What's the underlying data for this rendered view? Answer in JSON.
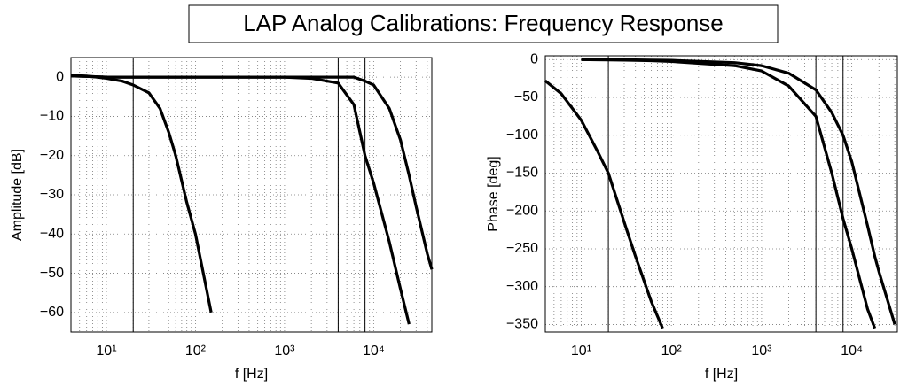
{
  "title": "LAP Analog Calibrations: Frequency Response",
  "chart_data": [
    {
      "type": "line",
      "xscale": "log",
      "grid": true,
      "xlabel": "f [Hz]",
      "ylabel": "Amplitude [dB]",
      "xlim": [
        4,
        45000
      ],
      "ylim": [
        -65,
        5
      ],
      "xticks": [
        {
          "value": 10,
          "label": "10¹"
        },
        {
          "value": 100,
          "label": "10²"
        },
        {
          "value": 1000,
          "label": "10³"
        },
        {
          "value": 10000,
          "label": "10⁴"
        }
      ],
      "yticks": [
        0,
        {
          "value": -10,
          "label": "−10"
        },
        {
          "value": -20,
          "label": "−20"
        },
        {
          "value": -30,
          "label": "−30"
        },
        {
          "value": -40,
          "label": "−40"
        },
        {
          "value": -50,
          "label": "−50"
        },
        {
          "value": -60,
          "label": "−60"
        }
      ],
      "vlines": [
        20,
        4000,
        8000
      ],
      "x": [
        4,
        6,
        10,
        15,
        20,
        30,
        40,
        50,
        60,
        80,
        100,
        120,
        150,
        1000,
        2000,
        4000,
        6000,
        8000,
        10000,
        15000,
        20000,
        25000,
        30000,
        40000,
        45000
      ],
      "series": [
        {
          "color": "#000000",
          "values": [
            0.5,
            0.3,
            -0.3,
            -1,
            -2,
            -4,
            -8,
            -14,
            -20,
            -32,
            -40,
            -49,
            -60,
            null,
            null,
            null,
            null,
            null,
            null,
            null,
            null,
            null,
            null,
            null,
            null
          ]
        },
        {
          "color": "#000000",
          "values": [
            0.3,
            0.2,
            0,
            0,
            0,
            0,
            0,
            0,
            0,
            0,
            0,
            0,
            0,
            0,
            -0.3,
            -1.5,
            -7,
            -20,
            -27,
            -42,
            -54,
            -63,
            null,
            null,
            null
          ]
        },
        {
          "color": "#000000",
          "values": [
            0.3,
            0.2,
            0,
            0,
            0,
            0,
            0,
            0,
            0,
            0,
            0,
            0,
            0,
            0,
            0,
            0,
            0,
            -1,
            -2,
            -8,
            -16,
            -25,
            -33,
            -45,
            -49
          ]
        }
      ]
    },
    {
      "type": "line",
      "xscale": "log",
      "grid": true,
      "xlabel": "f [Hz]",
      "ylabel": "Phase [deg]",
      "xlim": [
        4,
        32000
      ],
      "ylim": [
        -360,
        5
      ],
      "xticks": [
        {
          "value": 10,
          "label": "10¹"
        },
        {
          "value": 100,
          "label": "10²"
        },
        {
          "value": 1000,
          "label": "10³"
        },
        {
          "value": 10000,
          "label": "10⁴"
        }
      ],
      "yticks": [
        0,
        {
          "value": -50,
          "label": "−50"
        },
        {
          "value": -100,
          "label": "−100"
        },
        {
          "value": -150,
          "label": "−150"
        },
        {
          "value": -200,
          "label": "−200"
        },
        {
          "value": -250,
          "label": "−250"
        },
        {
          "value": -300,
          "label": "−300"
        },
        {
          "value": -350,
          "label": "−350"
        }
      ],
      "vlines": [
        20,
        4000,
        8000
      ],
      "x": [
        4,
        6,
        10,
        15,
        20,
        30,
        40,
        60,
        80,
        100,
        500,
        1000,
        2000,
        4000,
        6000,
        8000,
        10000,
        15000,
        18000,
        20000,
        30000
      ],
      "series": [
        {
          "color": "#000000",
          "values": [
            -28,
            -45,
            -80,
            -120,
            -150,
            -215,
            -260,
            -320,
            -355,
            null,
            null,
            null,
            null,
            null,
            null,
            null,
            null,
            null,
            null,
            null,
            null
          ]
        },
        {
          "color": "#000000",
          "values": [
            null,
            null,
            0,
            -0.3,
            -0.5,
            -0.8,
            -1,
            -1.5,
            -2,
            -2.5,
            -8,
            -15,
            -35,
            -75,
            -150,
            -210,
            -250,
            -330,
            -355,
            null,
            null
          ]
        },
        {
          "color": "#000000",
          "values": [
            null,
            null,
            0,
            0,
            0,
            -0.3,
            -0.4,
            -0.6,
            -0.8,
            -1,
            -4,
            -8,
            -18,
            -40,
            -70,
            -100,
            -135,
            -220,
            -260,
            -280,
            -350
          ]
        }
      ]
    }
  ]
}
